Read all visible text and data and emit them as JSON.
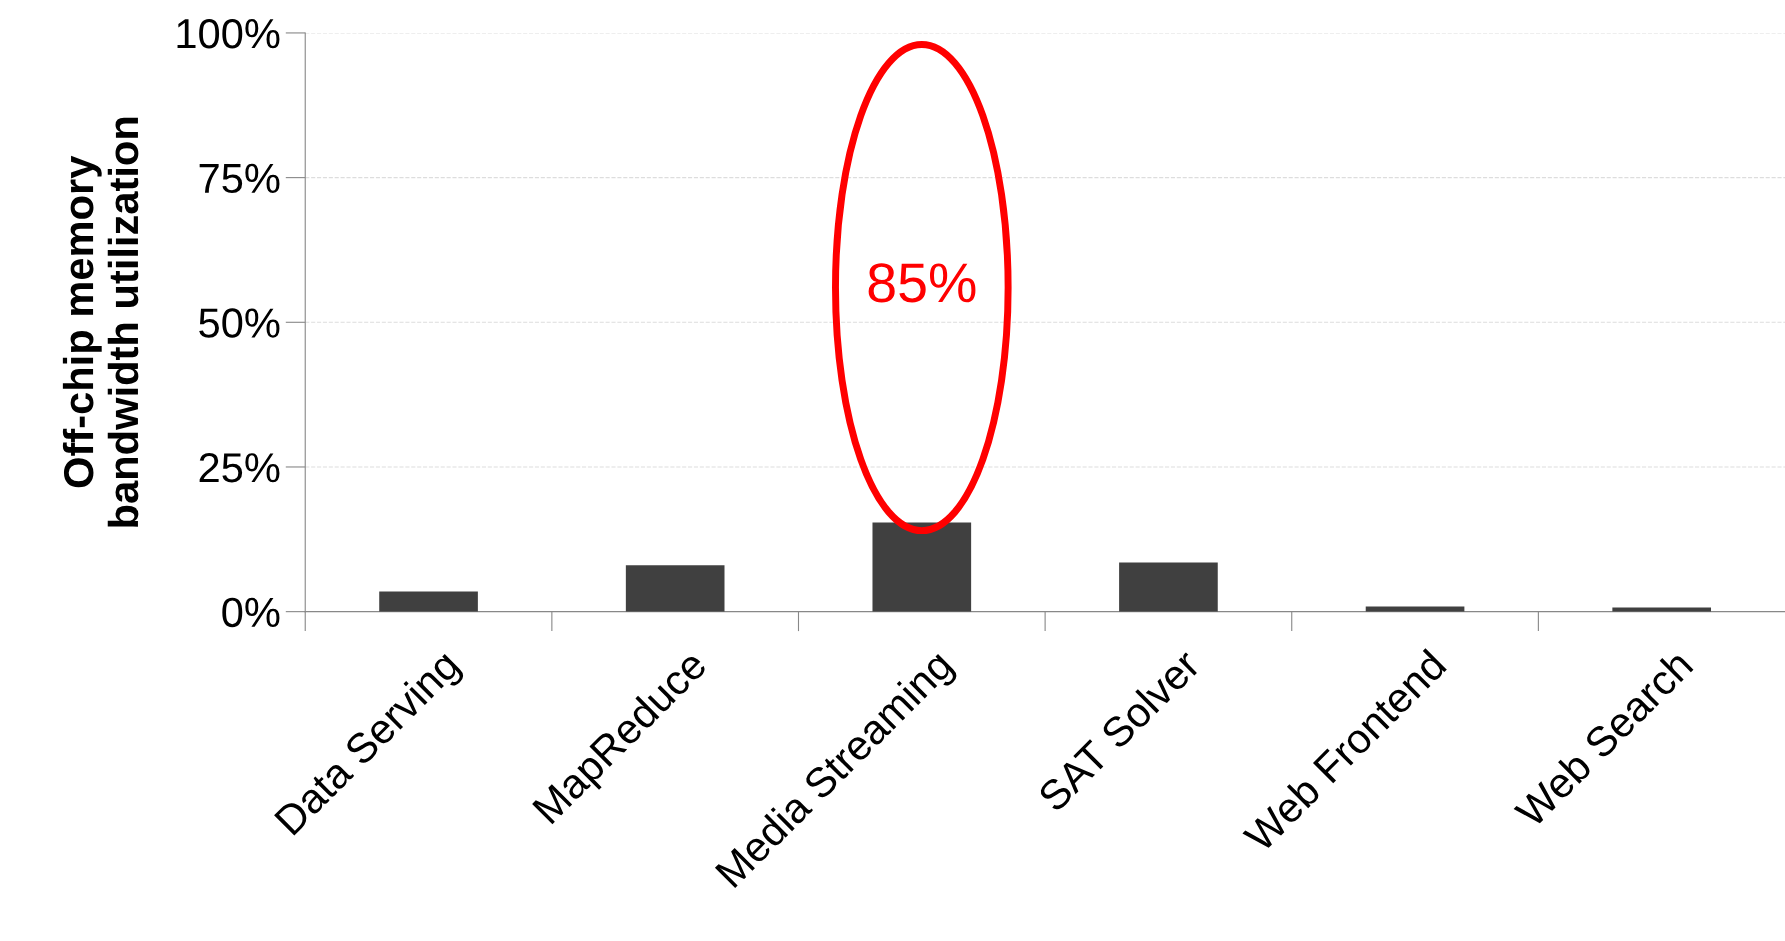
{
  "chart_data": {
    "type": "bar",
    "ylabel": "Off-chip memory\nbandwidth utilization",
    "categories": [
      "Data Serving",
      "MapReduce",
      "Media Streaming",
      "SAT Solver",
      "Web Frontend",
      "Web Search"
    ],
    "values": [
      3.5,
      8.0,
      15.4,
      8.5,
      0.9,
      0.7
    ],
    "color": "#404040",
    "ylim": [
      0,
      100
    ],
    "yticks": [
      {
        "value": 0,
        "label": "0%"
      },
      {
        "value": 25,
        "label": "25%"
      },
      {
        "value": 50,
        "label": "50%"
      },
      {
        "value": 75,
        "label": "75%"
      },
      {
        "value": 100,
        "label": "100%"
      }
    ],
    "grid": "y",
    "annotations": [
      "85%"
    ]
  }
}
